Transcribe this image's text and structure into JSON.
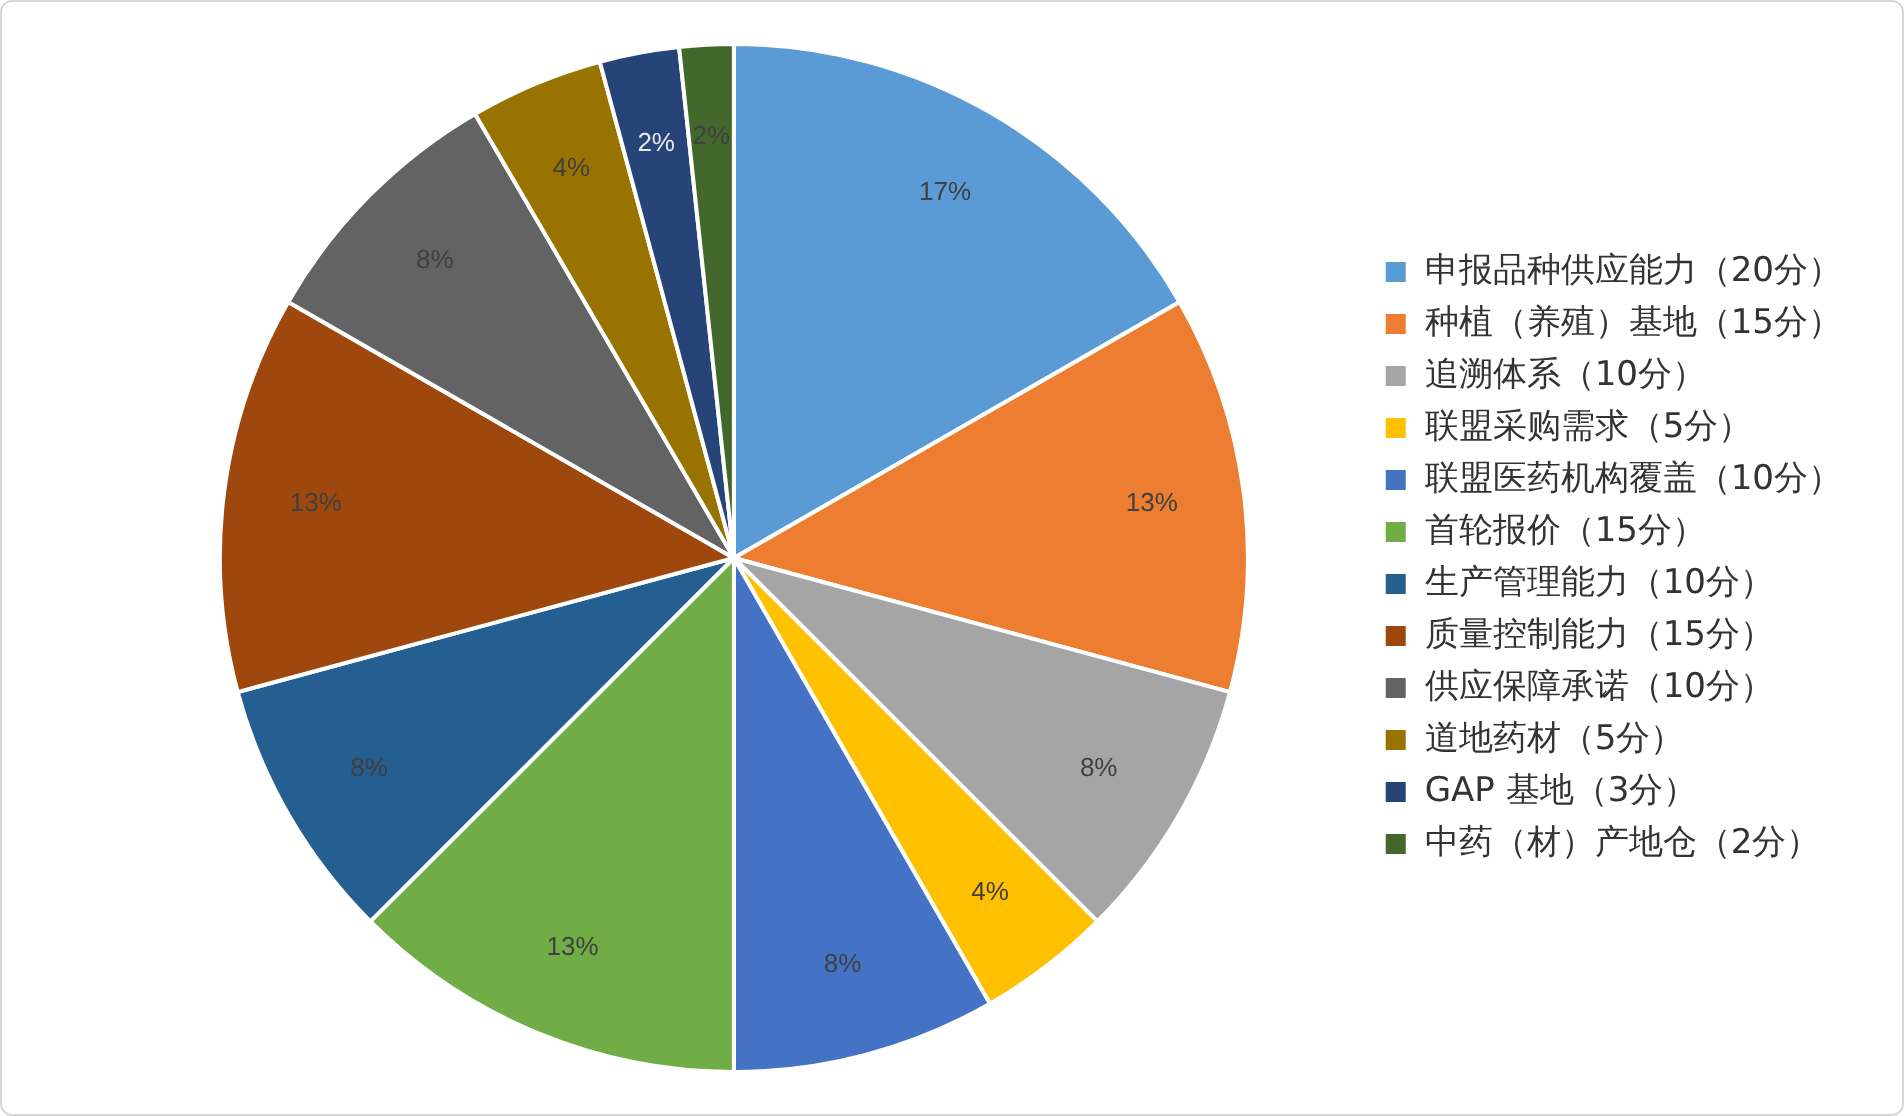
{
  "chart_data": {
    "type": "pie",
    "categories": [
      "申报品种供应能力（20分）",
      "种植（养殖）基地（15分）",
      "追溯体系（10分）",
      "联盟采购需求（5分）",
      "联盟医药机构覆盖（10分）",
      "首轮报价（15分）",
      "生产管理能力（10分）",
      "质量控制能力（15分）",
      "供应保障承诺（10分）",
      "道地药材（5分）",
      "GAP 基地（3分）",
      "中药（材）产地仓（2分）"
    ],
    "values": [
      16.7,
      12.5,
      8.3,
      4.2,
      8.3,
      12.5,
      8.3,
      12.5,
      8.3,
      4.2,
      2.5,
      1.7
    ],
    "value_labels": [
      "17%",
      "13%",
      "8%",
      "4%",
      "8%",
      "13%",
      "8%",
      "13%",
      "8%",
      "4%",
      "2%",
      "2%"
    ],
    "colors": [
      "#5b9bd5",
      "#ed7d31",
      "#a5a5a5",
      "#ffc000",
      "#4472c4",
      "#70ad47",
      "#255e91",
      "#9e480e",
      "#636363",
      "#997300",
      "#264478",
      "#43682b"
    ],
    "legend": "right"
  }
}
